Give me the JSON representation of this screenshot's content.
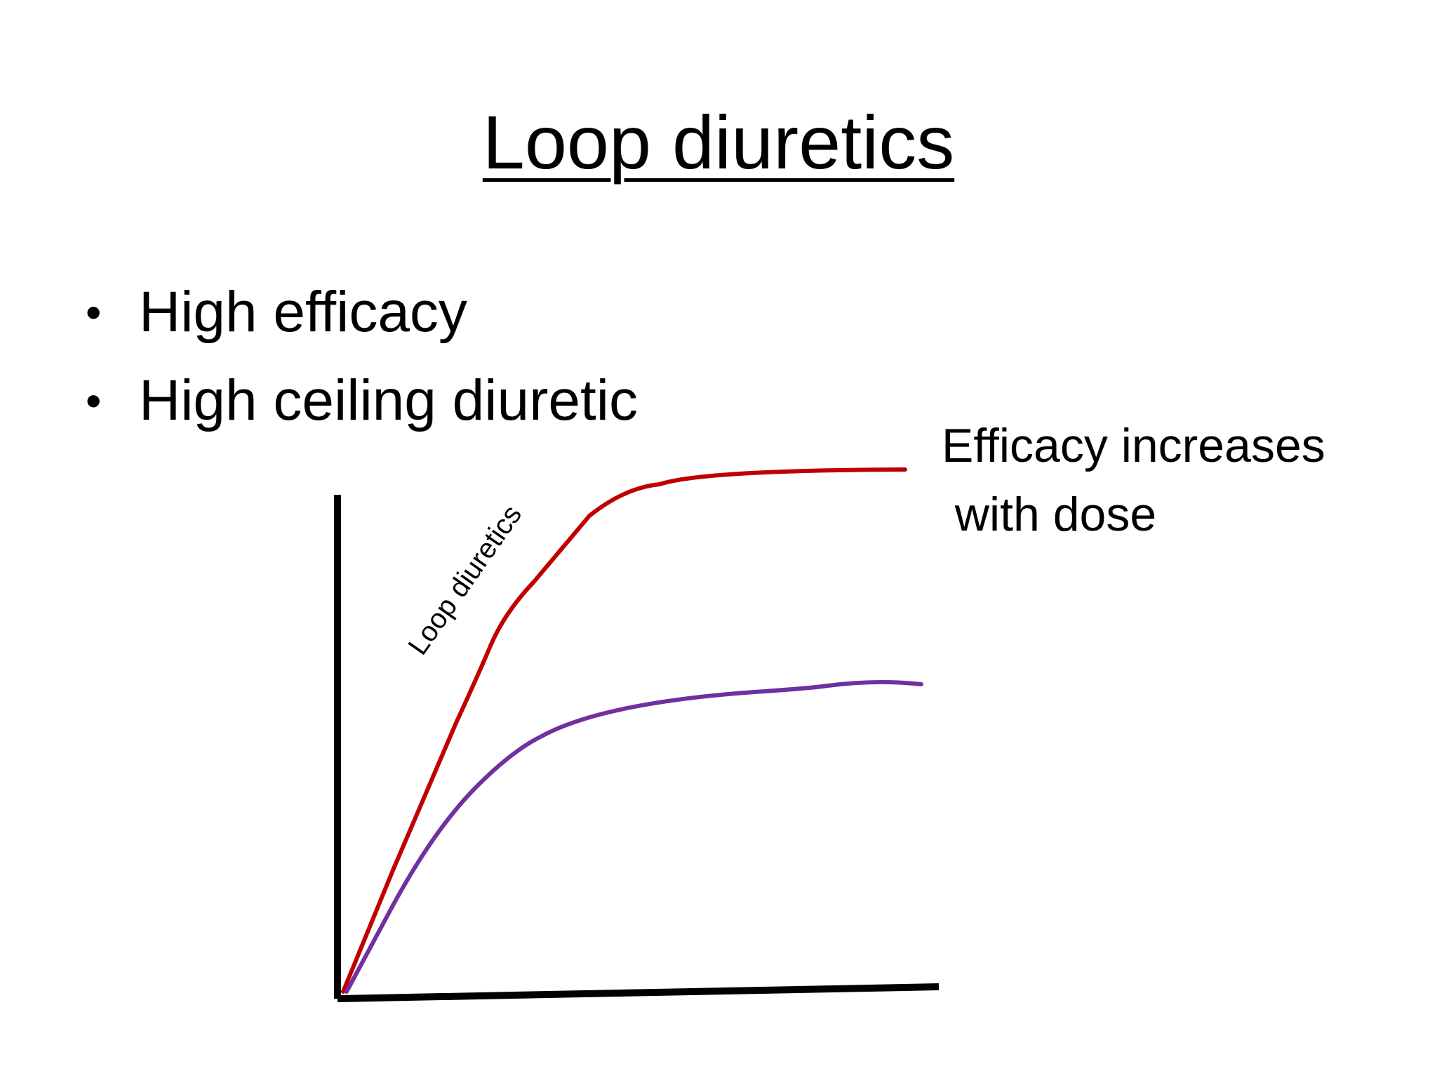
{
  "title": "Loop diuretics",
  "bullets": [
    "High efficacy",
    "High ceiling diuretic"
  ],
  "side_note": "Efficacy increases\n with dose",
  "graph": {
    "curve_label": "Loop diuretics",
    "colors": {
      "loop_curve": "#c00000",
      "lower_curve": "#7030a0",
      "axes": "#000000"
    }
  }
}
